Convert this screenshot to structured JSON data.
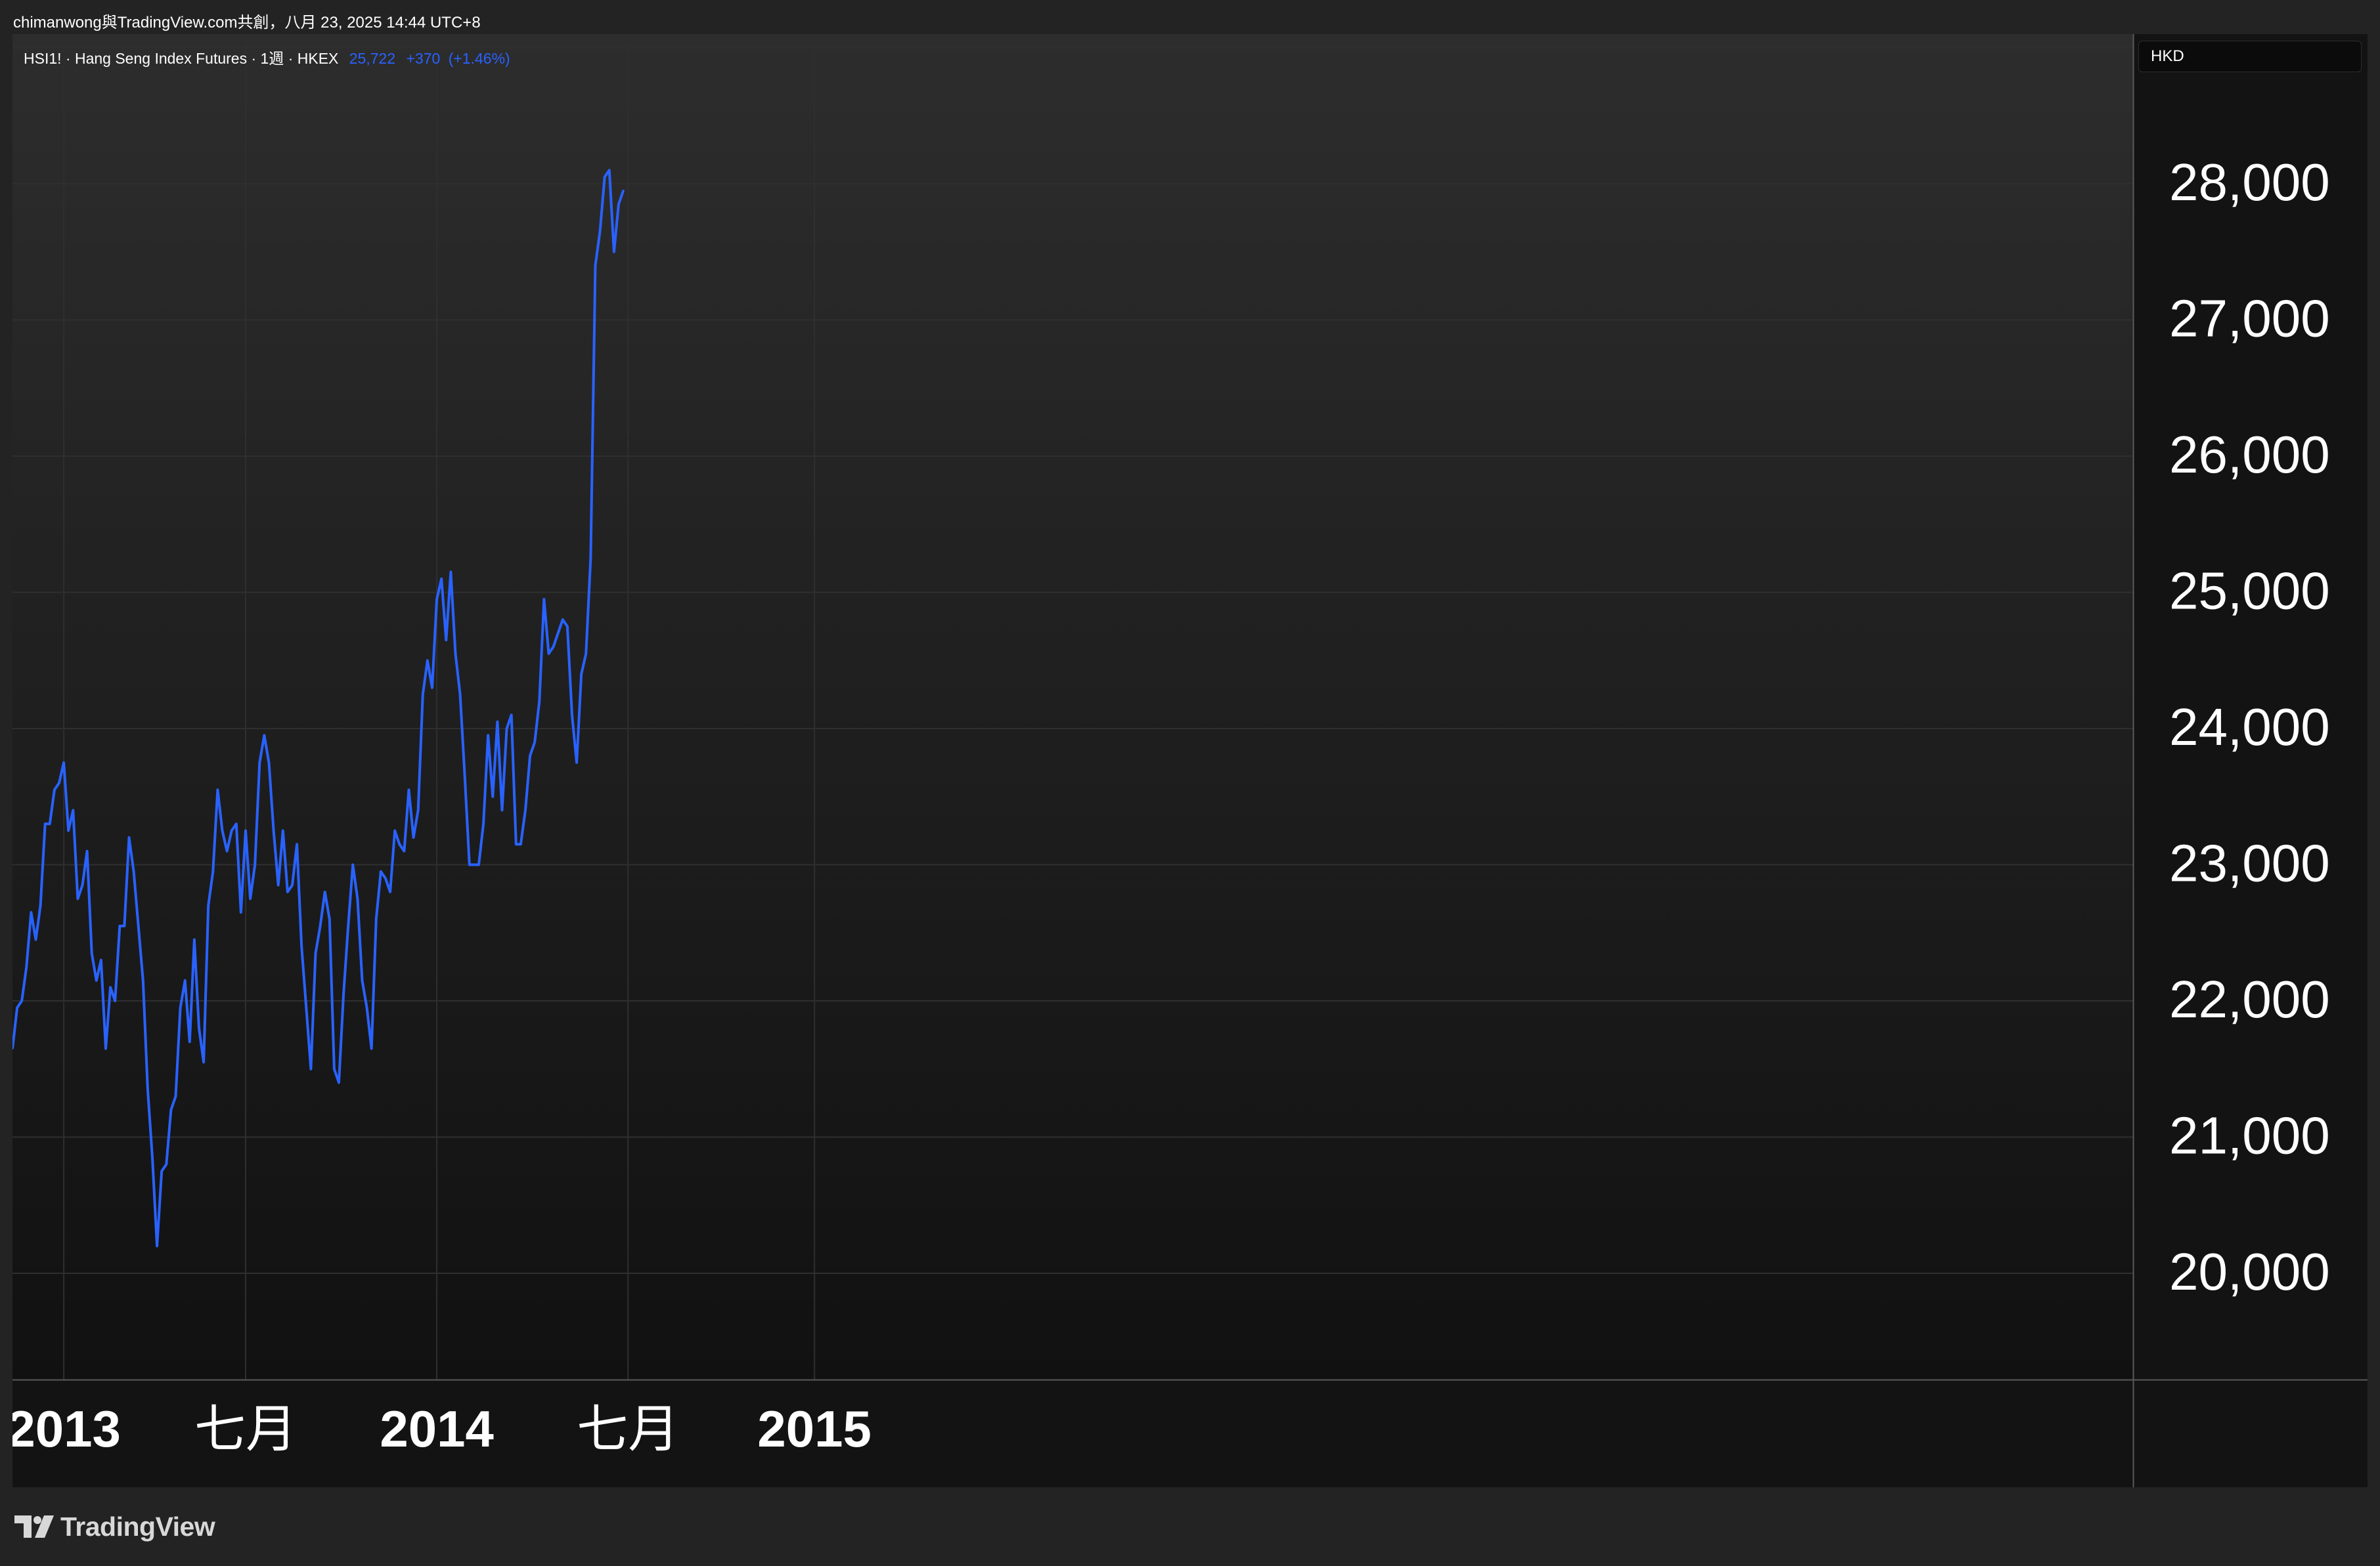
{
  "header": {
    "attribution": "chimanwong與TradingView.com共創，八月 23, 2025 14:44 UTC+8"
  },
  "legend": {
    "symbol": "HSI1! · Hang Seng Index Futures · 1週 · HKEX",
    "last": "25,722",
    "change": "+370",
    "change_pct": "(+1.46%)"
  },
  "currency": "HKD",
  "footer": {
    "brand": "TradingView"
  },
  "colors": {
    "line": "#2962ff",
    "background": "#131313",
    "frame": "#232323",
    "grid": "#2f2f2f",
    "text": "#ffffff"
  },
  "chart_data": {
    "type": "line",
    "series": [
      {
        "values": [
          21650,
          21950,
          22000,
          22250,
          22650,
          22450,
          22700,
          23300,
          23300,
          23550,
          23600,
          23750,
          23250,
          23400,
          22750,
          22850,
          23100,
          22350,
          22150,
          22300,
          21650,
          22100,
          22000,
          22550,
          22550,
          23200,
          22950,
          22550,
          22150,
          21350,
          20850,
          20200,
          20750,
          20800,
          21200,
          21300,
          21950,
          22150,
          21700,
          22450,
          21800,
          21550,
          22700,
          22950,
          23550,
          23250,
          23100,
          23250,
          23300,
          22650,
          23250,
          22750,
          23000,
          23750,
          23950,
          23750,
          23250,
          22850,
          23250,
          22800,
          22850,
          23150,
          22400,
          21950,
          21500,
          22350,
          22550,
          22800,
          22600,
          21500,
          21400,
          22050,
          22550,
          23000,
          22750,
          22150,
          21950,
          21650,
          22600,
          22950,
          22900,
          22800,
          23250,
          23150,
          23100,
          23550,
          23200,
          23400,
          24250,
          24500,
          24300,
          24950,
          25100,
          24650,
          25150,
          24550,
          24250,
          23650,
          23000,
          23000,
          23000,
          23300,
          23950,
          23500,
          24050,
          23400,
          24000,
          24100,
          23150,
          23150,
          23400,
          23800,
          23900,
          24200,
          24950,
          24550,
          24600,
          24700,
          24800,
          24750,
          24100,
          23750,
          24400,
          24550,
          25250,
          27400,
          27650,
          28050,
          28100,
          27500,
          27850,
          27950
        ]
      }
    ],
    "x_ticks": [
      "2013",
      "七月",
      "2014",
      "七月",
      "2015"
    ],
    "y_ticks": [
      "28,000",
      "27,000",
      "26,000",
      "25,000",
      "24,000",
      "23,000",
      "22,000",
      "21,000",
      "20,000"
    ],
    "ylim": [
      19200,
      29000
    ],
    "grid": true
  }
}
